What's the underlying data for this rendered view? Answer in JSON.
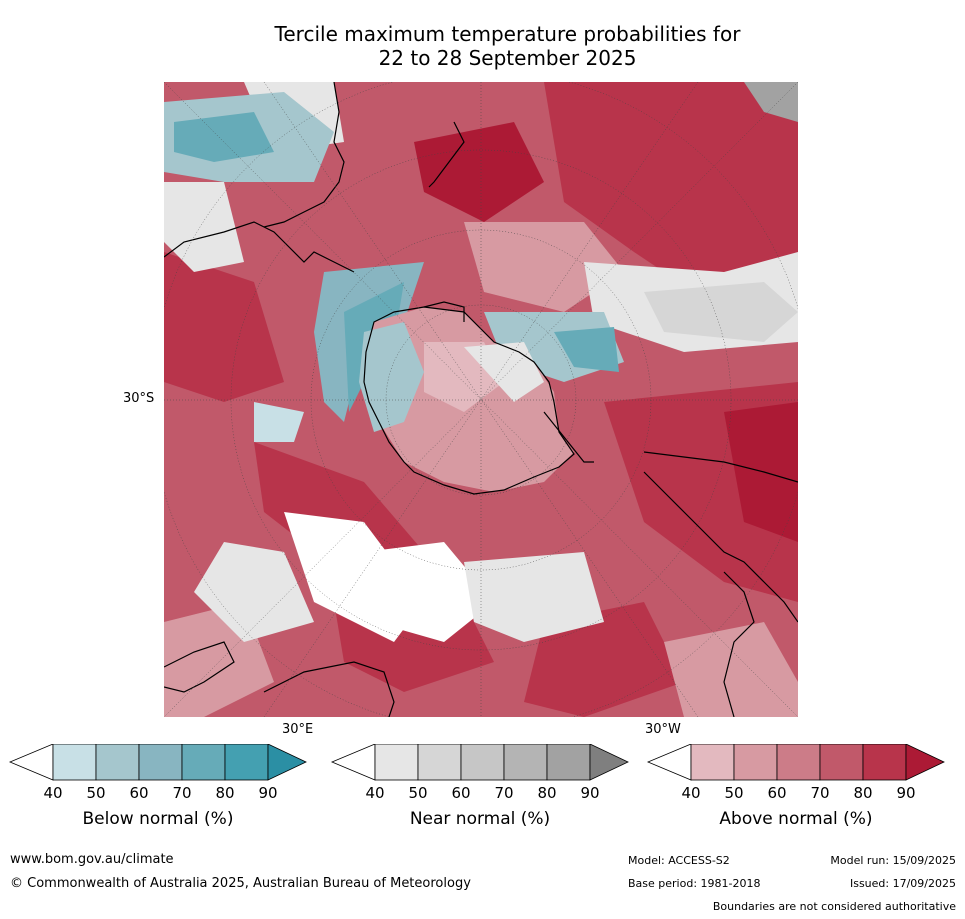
{
  "title_line1": "Tercile maximum temperature probabilities for",
  "title_line2": "22 to 28 September 2025",
  "map": {
    "lat_labels": {
      "left": "30°S"
    },
    "lon_labels": {
      "bottom_left": "30°E",
      "bottom_right": "30°W"
    }
  },
  "colorbars": [
    {
      "label": "Below normal (%)",
      "ticks": [
        "40",
        "50",
        "60",
        "70",
        "80",
        "90"
      ],
      "colors": [
        "#ffffff",
        "#c8e0e6",
        "#a5c6cd",
        "#88b5c1",
        "#66abb8",
        "#44a0b1",
        "#2b8fa4"
      ]
    },
    {
      "label": "Near normal (%)",
      "ticks": [
        "40",
        "50",
        "60",
        "70",
        "80",
        "90"
      ],
      "colors": [
        "#ffffff",
        "#e6e6e6",
        "#d6d6d6",
        "#c6c6c6",
        "#b4b4b4",
        "#a2a2a2",
        "#7f7f7f"
      ]
    },
    {
      "label": "Above normal (%)",
      "ticks": [
        "40",
        "50",
        "60",
        "70",
        "80",
        "90"
      ],
      "colors": [
        "#ffffff",
        "#e3b9bf",
        "#d79aa2",
        "#cc7c88",
        "#c1596a",
        "#b8344b",
        "#ac1a35"
      ]
    }
  ],
  "footer": {
    "website": "www.bom.gov.au/climate",
    "copyright": "© Commonwealth of Australia 2025, Australian Bureau of Meteorology",
    "model": "Model: ACCESS-S2",
    "model_run": "Model run: 15/09/2025",
    "base_period": "Base period: 1981-2018",
    "issued": "Issued: 17/09/2025",
    "disclaimer": "Boundaries are not considered authoritative"
  }
}
